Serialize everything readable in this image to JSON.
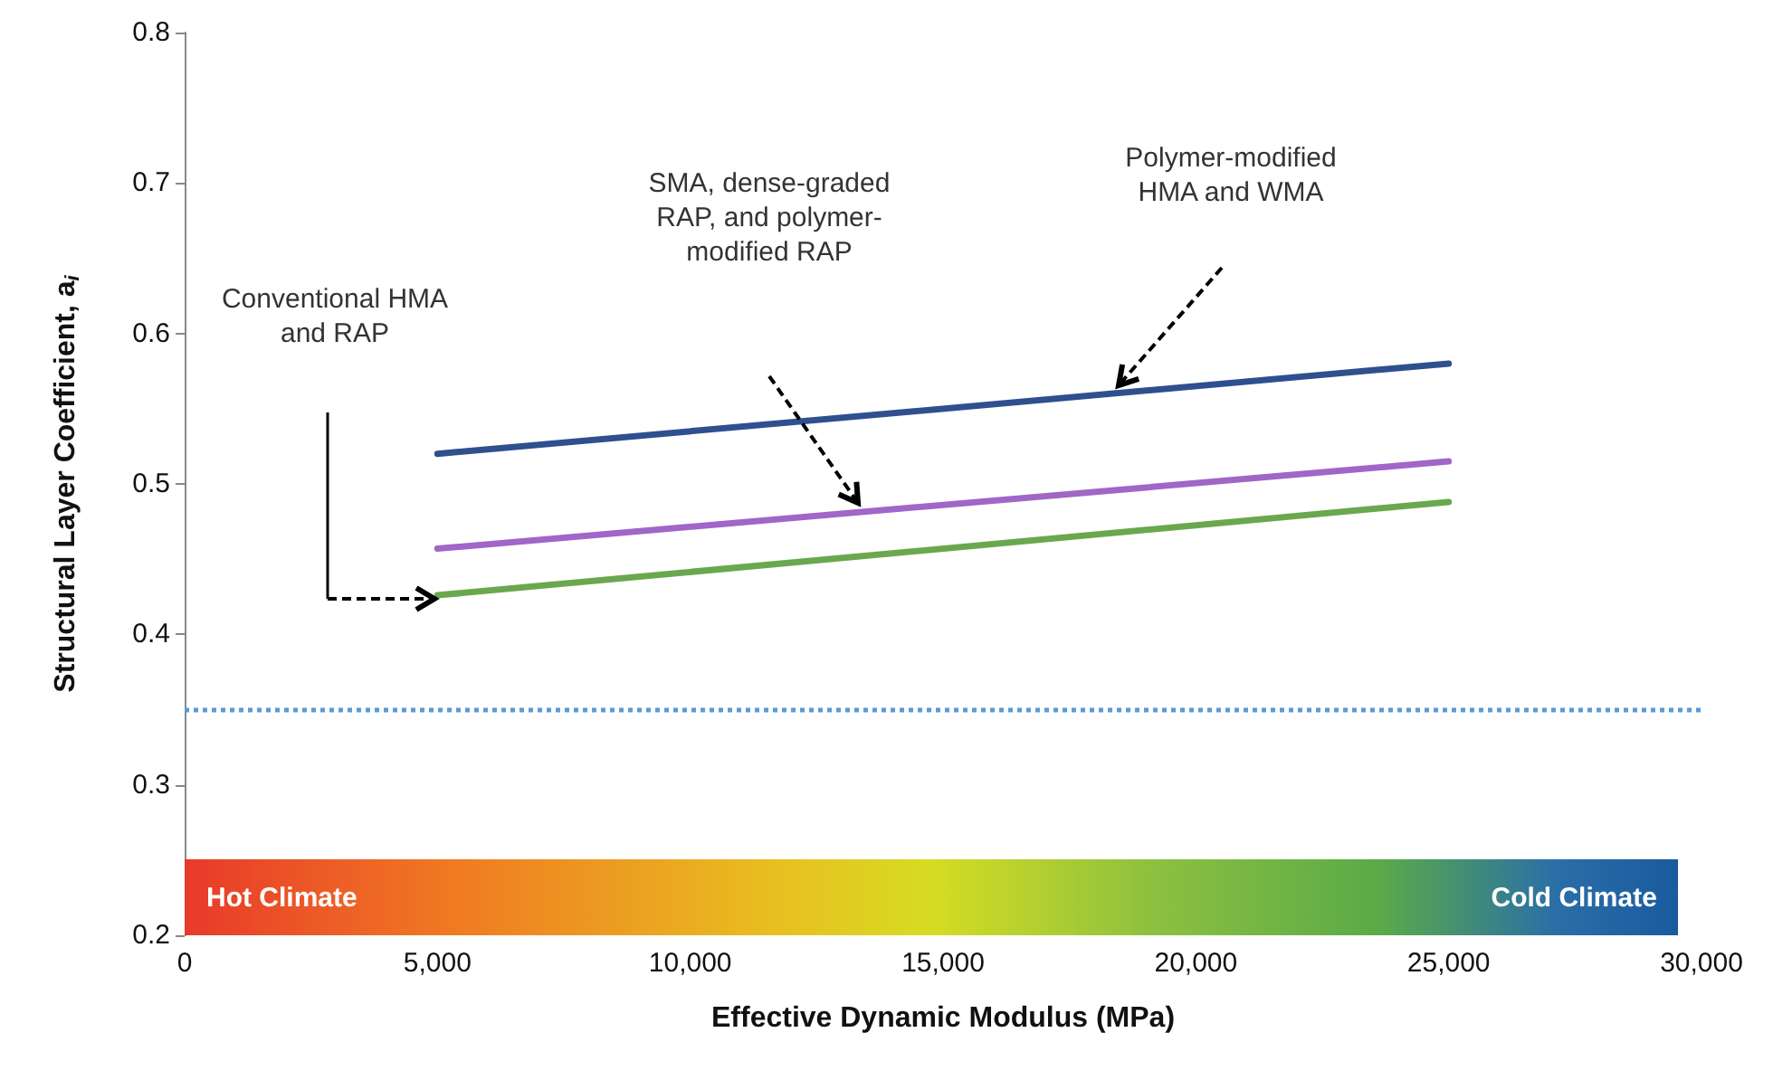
{
  "chart_data": {
    "type": "line",
    "xlabel": "Effective Dynamic Modulus (MPa)",
    "ylabel": "Structural Layer Coefficient, a$_{i}$",
    "x": [
      5000,
      25000
    ],
    "series": [
      {
        "color": "#2f4f8f",
        "values": [
          0.52,
          0.58
        ]
      },
      {
        "color": "#a066c8",
        "values": [
          0.457,
          0.515
        ]
      },
      {
        "color": "#6aa84f",
        "values": [
          0.426,
          0.488
        ]
      }
    ],
    "xlim": [
      0,
      30000
    ],
    "xticks": [
      {
        "value": 0,
        "label": "0"
      },
      {
        "value": 5000,
        "label": "5,000"
      },
      {
        "value": 10000,
        "label": "10,000"
      },
      {
        "value": 15000,
        "label": "15,000"
      },
      {
        "value": 20000,
        "label": "20,000"
      },
      {
        "value": 25000,
        "label": "25,000"
      },
      {
        "value": 30000,
        "label": "30,000"
      }
    ],
    "ylim": [
      0.2,
      0.8
    ],
    "yticks": [
      0.2,
      0.3,
      0.4,
      0.5,
      0.6,
      0.7,
      0.8
    ],
    "grid": false,
    "marker": "none",
    "line_style": "solid",
    "ref_lines": [
      {
        "axis": "y",
        "value": 0.35,
        "color": "#5b9bd5",
        "line_style": "dotted"
      }
    ],
    "bands": [
      {
        "axis": "y",
        "from": 0.2,
        "to": 0.25
      }
    ],
    "annotations": [
      "Conventional HMA\nand RAP",
      "SMA, dense-graded\nRAP, and polymer-\nmodified RAP",
      "Polymer-modified\nHMA and WMA",
      "Hot Climate",
      "Cold Climate"
    ]
  }
}
